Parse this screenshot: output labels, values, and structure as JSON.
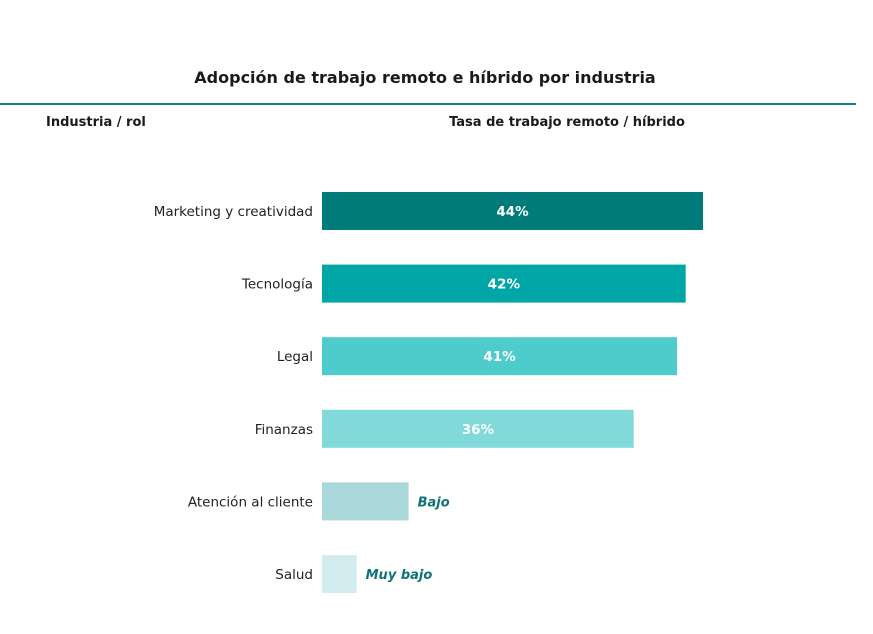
{
  "chart_data": {
    "type": "bar",
    "orientation": "horizontal",
    "title": "Adopción de trabajo remoto e híbrido por industria",
    "column_headers": {
      "category": "Industria / rol",
      "value": "Tasa de trabajo remoto / híbrido"
    },
    "categories": [
      "Marketing y creatividad",
      "Tecnología",
      "Legal",
      "Finanzas",
      "Atención al cliente",
      "Salud"
    ],
    "values": [
      44,
      42,
      41,
      36,
      10,
      4
    ],
    "value_labels": [
      "44%",
      "42%",
      "41%",
      "36%",
      "",
      ""
    ],
    "qualitative_labels": [
      "",
      "",
      "",
      "",
      "Bajo",
      "Muy bajo"
    ],
    "bar_colors": [
      "#007b7a",
      "#00a5a5",
      "#4ecbcb",
      "#82d9d9",
      "#aad8da",
      "#d3ecee"
    ],
    "accent_color": "#0d7377",
    "xlim": [
      0,
      44
    ],
    "grid": false,
    "legend": "none"
  }
}
